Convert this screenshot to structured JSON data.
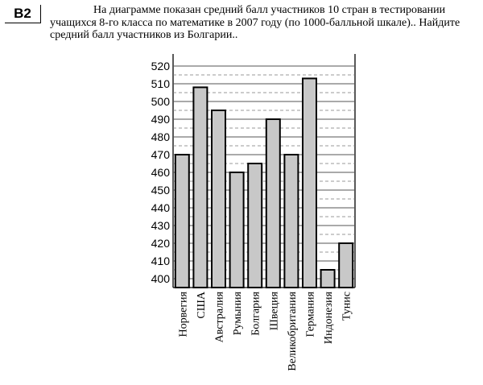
{
  "task": {
    "label": "B2",
    "text": "На диаграмме показан средний балл участников 10 стран в тестировании учащихся 8-го класса по математике в 2007 году (по 1000-балльной шкале).. Найдите средний балл участников из Болгарии.."
  },
  "chart_data": {
    "type": "bar",
    "categories": [
      "Норвегия",
      "США",
      "Австралия",
      "Румыния",
      "Болгария",
      "Швеция",
      "Великобритания",
      "Германия",
      "Индонезия",
      "Тунис"
    ],
    "values": [
      470,
      508,
      495,
      460,
      465,
      490,
      470,
      513,
      405,
      420
    ],
    "yticks": [
      400,
      410,
      420,
      430,
      440,
      450,
      460,
      470,
      480,
      490,
      500,
      510,
      520
    ],
    "ylim": [
      396,
      522
    ],
    "title": "",
    "xlabel": "",
    "ylabel": "",
    "grid": "solid lines at labeled ticks, dashed lines at midpoints",
    "bar_color": "#c8c8c8"
  }
}
